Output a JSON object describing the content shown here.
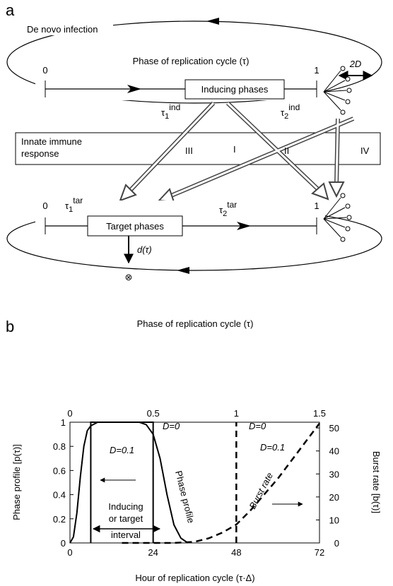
{
  "panel_a": {
    "letter": "a",
    "cycle_label": "De novo infection",
    "axis_title": "Phase of replication cycle (τ)",
    "spread": {
      "italic": "2D"
    },
    "top_line": {
      "start": "0",
      "end": "1",
      "box": "Inducing phases",
      "tau1": {
        "symbol": "τ",
        "sub": "1",
        "sup": "ind"
      },
      "tau2": {
        "symbol": "τ",
        "sub": "2",
        "sup": "ind"
      }
    },
    "immune_box": {
      "lines": [
        "Innate immune",
        "response"
      ],
      "routes": [
        "III",
        "I",
        "II",
        "IV"
      ]
    },
    "bottom_line": {
      "start": "0",
      "end": "1",
      "box": "Target phases",
      "tau1": {
        "symbol": "τ",
        "sub": "1",
        "sup": "tar"
      },
      "tau2": {
        "symbol": "τ",
        "sub": "2",
        "sup": "tar"
      },
      "decay": "d(τ)",
      "death": "⊗"
    }
  },
  "chart_data": {
    "type": "line",
    "letter": "b",
    "x_label": "Hour of replication cycle (τ·Δ)",
    "x2_label": "Phase of replication cycle  (τ)",
    "y_label": "Phase profile  [p(τ)]",
    "y2_label": "Burst rate  [b(τ)]",
    "xlim": [
      0,
      72
    ],
    "xticks": [
      0,
      24,
      48,
      72
    ],
    "x2lim": [
      0,
      1.5
    ],
    "x2ticks": [
      0,
      0.5,
      1,
      1.5
    ],
    "ylim": [
      0,
      1
    ],
    "yticks": [
      0,
      0.2,
      0.4,
      0.6,
      0.8,
      1
    ],
    "y2lim": [
      0,
      52.5
    ],
    "y2ticks": [
      0,
      10,
      20,
      30,
      40,
      50
    ],
    "series": [
      {
        "label": "D=0",
        "color": "#000000",
        "dash": false,
        "x": [
          6,
          6,
          24,
          24
        ],
        "values": [
          0,
          1,
          1,
          0
        ]
      },
      {
        "label": "D=0.1",
        "color": "#000000",
        "dash": false,
        "x": [
          0,
          1,
          2,
          3,
          4,
          5,
          6,
          8,
          20,
          22,
          24,
          26,
          28,
          30,
          32,
          34
        ],
        "values": [
          0,
          0.05,
          0.25,
          0.55,
          0.8,
          0.93,
          0.97,
          1,
          1,
          0.98,
          0.9,
          0.7,
          0.4,
          0.15,
          0.04,
          0
        ]
      },
      {
        "label": "D=0",
        "color": "#000000",
        "dash": true,
        "axis": "y2",
        "x": [
          48,
          48
        ],
        "values": [
          0,
          52.5
        ]
      },
      {
        "label": "D=0.1",
        "color": "#000000",
        "dash": true,
        "axis": "y2",
        "x": [
          15,
          30,
          36,
          40,
          44,
          48,
          52,
          56,
          60,
          64,
          68,
          72
        ],
        "values": [
          0,
          0,
          0.5,
          2,
          4.5,
          8,
          14,
          21,
          28,
          36,
          44,
          52
        ]
      }
    ],
    "annotations": {
      "phase": "Phase profile",
      "burst": "Burst rate",
      "interval": [
        "Inducing",
        "or target",
        "interval"
      ]
    }
  }
}
